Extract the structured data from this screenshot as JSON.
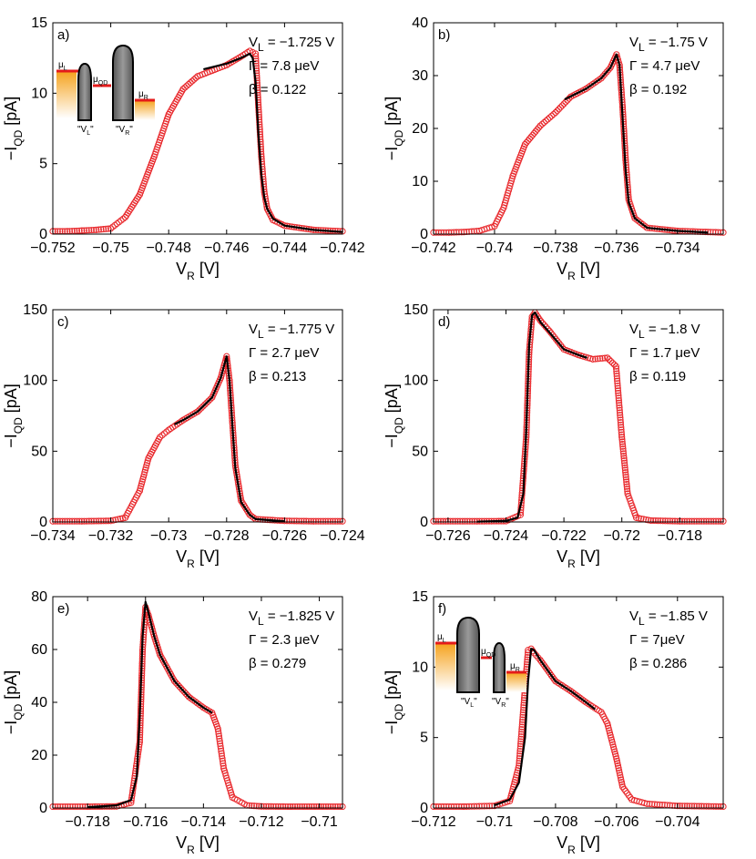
{
  "colors": {
    "data_points": "#e8262a",
    "fit_line": "#000000",
    "axis": "#000000",
    "background": "#ffffff"
  },
  "chart_data": [
    {
      "panel": "a)",
      "type": "scatter",
      "xlabel": "V",
      "xlabel_sub": "R",
      "xlabel_unit": "[V]",
      "ylabel": "−I",
      "ylabel_sub": "QD",
      "ylabel_unit": "[pA]",
      "xlim": [
        -0.752,
        -0.742
      ],
      "ylim": [
        0,
        15
      ],
      "xticks": [
        -0.752,
        -0.75,
        -0.748,
        -0.746,
        -0.744,
        -0.742
      ],
      "xtick_labels": [
        "−0.752",
        "−0.75",
        "−0.748",
        "−0.746",
        "−0.744",
        "−0.742"
      ],
      "yticks": [
        0,
        5,
        10,
        15
      ],
      "ytick_labels": [
        "0",
        "5",
        "10",
        "15"
      ],
      "annotation": [
        "V",
        "L",
        " = −1.725 V",
        "Γ = 7.8 μeV",
        "β = 0.122"
      ],
      "series": [
        {
          "name": "data",
          "mode": "markers",
          "x": [
            -0.752,
            -0.7515,
            -0.751,
            -0.7505,
            -0.75,
            -0.7495,
            -0.749,
            -0.7485,
            -0.748,
            -0.7475,
            -0.747,
            -0.7465,
            -0.746,
            -0.7455,
            -0.7452,
            -0.745,
            -0.7449,
            -0.7448,
            -0.7447,
            -0.7446,
            -0.7444,
            -0.744,
            -0.743,
            -0.742
          ],
          "y": [
            0.2,
            0.2,
            0.25,
            0.3,
            0.4,
            1.2,
            2.8,
            5.5,
            8.5,
            10.3,
            11.2,
            11.6,
            12.0,
            12.6,
            13.0,
            12.8,
            9.0,
            5.5,
            3.0,
            1.8,
            1.0,
            0.6,
            0.3,
            0.2
          ]
        },
        {
          "name": "fit",
          "mode": "line",
          "x": [
            -0.7468,
            -0.746,
            -0.7455,
            -0.7452,
            -0.7451,
            -0.745,
            -0.7449,
            -0.7448,
            -0.7447,
            -0.7446,
            -0.7444,
            -0.744,
            -0.743,
            -0.742
          ],
          "y": [
            11.7,
            12.1,
            12.5,
            12.8,
            12.5,
            10.8,
            7.0,
            4.2,
            2.6,
            1.8,
            1.1,
            0.6,
            0.3,
            0.15
          ]
        }
      ]
    },
    {
      "panel": "b)",
      "type": "scatter",
      "xlabel": "V",
      "xlabel_sub": "R",
      "xlabel_unit": "[V]",
      "ylabel": "−I",
      "ylabel_sub": "QD",
      "ylabel_unit": "[pA]",
      "xlim": [
        -0.742,
        -0.7325
      ],
      "ylim": [
        0,
        40
      ],
      "xticks": [
        -0.742,
        -0.74,
        -0.738,
        -0.736,
        -0.734
      ],
      "xtick_labels": [
        "−0.742",
        "−0.74",
        "−0.738",
        "−0.736",
        "−0.734"
      ],
      "yticks": [
        0,
        10,
        20,
        30,
        40
      ],
      "ytick_labels": [
        "0",
        "10",
        "20",
        "30",
        "40"
      ],
      "annotation": [
        "V",
        "L",
        " = −1.75 V",
        "Γ = 4.7 μeV",
        "β = 0.192"
      ],
      "series": [
        {
          "name": "data",
          "mode": "markers",
          "x": [
            -0.742,
            -0.7415,
            -0.741,
            -0.7405,
            -0.74,
            -0.7397,
            -0.7394,
            -0.739,
            -0.7385,
            -0.738,
            -0.7375,
            -0.737,
            -0.7365,
            -0.7362,
            -0.736,
            -0.7359,
            -0.7358,
            -0.7357,
            -0.7356,
            -0.7354,
            -0.735,
            -0.734,
            -0.733,
            -0.7325
          ],
          "y": [
            0.3,
            0.3,
            0.4,
            0.6,
            1.5,
            5.0,
            11.0,
            17.0,
            20.5,
            23.0,
            26.0,
            27.5,
            29.5,
            31.5,
            34.0,
            32.0,
            24.0,
            14.0,
            6.5,
            3.0,
            1.2,
            0.6,
            0.4,
            0.3
          ]
        },
        {
          "name": "fit",
          "mode": "line",
          "x": [
            -0.7377,
            -0.737,
            -0.7365,
            -0.7362,
            -0.736,
            -0.7359,
            -0.7358,
            -0.7357,
            -0.7356,
            -0.7354,
            -0.735,
            -0.734,
            -0.733
          ],
          "y": [
            25.5,
            27.5,
            29.5,
            31.5,
            34.0,
            32.0,
            22.0,
            12.0,
            6.0,
            3.0,
            1.2,
            0.6,
            0.3
          ]
        }
      ]
    },
    {
      "panel": "c)",
      "type": "scatter",
      "xlabel": "V",
      "xlabel_sub": "R",
      "xlabel_unit": "[V]",
      "ylabel": "−I",
      "ylabel_sub": "QD",
      "ylabel_unit": "[pA]",
      "xlim": [
        -0.734,
        -0.724
      ],
      "ylim": [
        0,
        150
      ],
      "xticks": [
        -0.734,
        -0.732,
        -0.73,
        -0.728,
        -0.726,
        -0.724
      ],
      "xtick_labels": [
        "−0.734",
        "−0.732",
        "−0.73",
        "−0.728",
        "−0.726",
        "−0.724"
      ],
      "yticks": [
        0,
        50,
        100,
        150
      ],
      "ytick_labels": [
        "0",
        "50",
        "100",
        "150"
      ],
      "annotation": [
        "V",
        "L",
        " = −1.775 V",
        "Γ = 2.7 μeV",
        "β = 0.213"
      ],
      "series": [
        {
          "name": "data",
          "mode": "markers",
          "x": [
            -0.734,
            -0.733,
            -0.732,
            -0.7315,
            -0.731,
            -0.7307,
            -0.7303,
            -0.73,
            -0.7295,
            -0.729,
            -0.7285,
            -0.7282,
            -0.728,
            -0.7279,
            -0.7278,
            -0.7277,
            -0.7275,
            -0.7272,
            -0.727,
            -0.726,
            -0.725,
            -0.724
          ],
          "y": [
            0.5,
            0.5,
            0.8,
            3.0,
            22.0,
            45.0,
            60.0,
            65.0,
            72.0,
            78.0,
            88.0,
            102.0,
            117.0,
            100.0,
            70.0,
            40.0,
            15.0,
            5.0,
            2.0,
            0.8,
            0.5,
            0.5
          ]
        },
        {
          "name": "fit",
          "mode": "line",
          "x": [
            -0.7298,
            -0.7295,
            -0.729,
            -0.7285,
            -0.7282,
            -0.728,
            -0.7279,
            -0.7278,
            -0.7277,
            -0.7275,
            -0.7272,
            -0.727,
            -0.726
          ],
          "y": [
            69.0,
            72.0,
            78.0,
            88.0,
            102.0,
            117.0,
            100.0,
            68.0,
            38.0,
            14.0,
            5.0,
            2.0,
            0.5
          ]
        }
      ]
    },
    {
      "panel": "d)",
      "type": "scatter",
      "xlabel": "V",
      "xlabel_sub": "R",
      "xlabel_unit": "[V]",
      "ylabel": "−I",
      "ylabel_sub": "QD",
      "ylabel_unit": "[pA]",
      "xlim": [
        -0.7265,
        -0.7165
      ],
      "ylim": [
        0,
        150
      ],
      "xticks": [
        -0.726,
        -0.724,
        -0.722,
        -0.72,
        -0.718
      ],
      "xtick_labels": [
        "−0.726",
        "−0.724",
        "−0.722",
        "−0.72",
        "−0.718"
      ],
      "yticks": [
        0,
        50,
        100,
        150
      ],
      "ytick_labels": [
        "0",
        "50",
        "100",
        "150"
      ],
      "annotation": [
        "V",
        "L",
        " = −1.8 V",
        "Γ = 1.7 μeV",
        "β = 0.119"
      ],
      "series": [
        {
          "name": "data",
          "mode": "markers",
          "x": [
            -0.7265,
            -0.725,
            -0.724,
            -0.7235,
            -0.7233,
            -0.7232,
            -0.7231,
            -0.723,
            -0.7228,
            -0.7225,
            -0.722,
            -0.7215,
            -0.721,
            -0.7205,
            -0.7202,
            -0.72,
            -0.7198,
            -0.7195,
            -0.719,
            -0.718,
            -0.7165
          ],
          "y": [
            0.5,
            0.5,
            0.6,
            5.0,
            60.0,
            120.0,
            145.0,
            148.0,
            142.0,
            135.0,
            122.0,
            118.0,
            115.0,
            116.0,
            110.0,
            60.0,
            20.0,
            3.0,
            1.0,
            0.5,
            0.5
          ]
        },
        {
          "name": "fit",
          "mode": "line",
          "x": [
            -0.725,
            -0.724,
            -0.7236,
            -0.7234,
            -0.7233,
            -0.7232,
            -0.7231,
            -0.723,
            -0.7228,
            -0.7225,
            -0.722,
            -0.7215,
            -0.7212
          ],
          "y": [
            0.2,
            0.8,
            3.0,
            20.0,
            65.0,
            125.0,
            146.0,
            148.0,
            141.0,
            134.0,
            122.0,
            118.0,
            116.0
          ]
        }
      ]
    },
    {
      "panel": "e)",
      "type": "scatter",
      "xlabel": "V",
      "xlabel_sub": "R",
      "xlabel_unit": "[V]",
      "ylabel": "−I",
      "ylabel_sub": "QD",
      "ylabel_unit": "[pA]",
      "xlim": [
        -0.7192,
        -0.7092
      ],
      "ylim": [
        0,
        80
      ],
      "xticks": [
        -0.718,
        -0.716,
        -0.714,
        -0.712,
        -0.71
      ],
      "xtick_labels": [
        "−0.718",
        "−0.716",
        "−0.714",
        "−0.712",
        "−0.71"
      ],
      "yticks": [
        0,
        20,
        40,
        60,
        80
      ],
      "ytick_labels": [
        "0",
        "20",
        "40",
        "60",
        "80"
      ],
      "annotation": [
        "V",
        "L",
        " = −1.825 V",
        "Γ = 2.3 μeV",
        "β = 0.279"
      ],
      "series": [
        {
          "name": "data",
          "mode": "markers",
          "x": [
            -0.7192,
            -0.718,
            -0.717,
            -0.7165,
            -0.7162,
            -0.7161,
            -0.716,
            -0.7159,
            -0.7157,
            -0.7155,
            -0.715,
            -0.7145,
            -0.714,
            -0.7137,
            -0.7135,
            -0.7133,
            -0.713,
            -0.7125,
            -0.712,
            -0.711,
            -0.7092
          ],
          "y": [
            0.5,
            0.5,
            0.6,
            2.0,
            25.0,
            60.0,
            76.0,
            73.0,
            65.0,
            58.0,
            48.0,
            42.0,
            38.0,
            36.0,
            30.0,
            15.0,
            4.0,
            1.0,
            0.6,
            0.5,
            0.5
          ]
        },
        {
          "name": "fit",
          "mode": "line",
          "x": [
            -0.718,
            -0.717,
            -0.7165,
            -0.7163,
            -0.7162,
            -0.7161,
            -0.716,
            -0.7159,
            -0.7157,
            -0.7155,
            -0.715,
            -0.7145,
            -0.714,
            -0.7137
          ],
          "y": [
            0.3,
            1.0,
            3.0,
            12.0,
            35.0,
            65.0,
            78.0,
            74.0,
            65.0,
            58.0,
            48.0,
            42.0,
            38.0,
            36.0
          ]
        }
      ]
    },
    {
      "panel": "f)",
      "type": "scatter",
      "xlabel": "V",
      "xlabel_sub": "R",
      "xlabel_unit": "[V]",
      "ylabel": "−I",
      "ylabel_sub": "QD",
      "ylabel_unit": "[pA]",
      "xlim": [
        -0.712,
        -0.7025
      ],
      "ylim": [
        0,
        15
      ],
      "xticks": [
        -0.712,
        -0.71,
        -0.708,
        -0.706,
        -0.704
      ],
      "xtick_labels": [
        "−0.712",
        "−0.71",
        "−0.708",
        "−0.706",
        "−0.704"
      ],
      "yticks": [
        0,
        5,
        10,
        15
      ],
      "ytick_labels": [
        "0",
        "5",
        "10",
        "15"
      ],
      "annotation": [
        "V",
        "L",
        " = −1.85 V",
        "Γ = 7μeV",
        "β = 0.286"
      ],
      "series": [
        {
          "name": "data",
          "mode": "markers",
          "x": [
            -0.712,
            -0.711,
            -0.71,
            -0.7095,
            -0.7092,
            -0.709,
            -0.7089,
            -0.7088,
            -0.7087,
            -0.7085,
            -0.708,
            -0.7075,
            -0.707,
            -0.7065,
            -0.7063,
            -0.706,
            -0.7058,
            -0.7055,
            -0.705,
            -0.704,
            -0.7025
          ],
          "y": [
            0.1,
            0.1,
            0.15,
            0.5,
            3.0,
            8.5,
            11.2,
            11.3,
            11.0,
            10.5,
            9.0,
            8.3,
            7.5,
            6.8,
            6.0,
            3.5,
            1.5,
            0.6,
            0.3,
            0.15,
            0.1
          ]
        },
        {
          "name": "fit",
          "mode": "line",
          "x": [
            -0.71,
            -0.7095,
            -0.7092,
            -0.709,
            -0.7089,
            -0.7088,
            -0.7087,
            -0.7085,
            -0.708,
            -0.7075,
            -0.707,
            -0.7067
          ],
          "y": [
            0.2,
            0.6,
            1.8,
            5.0,
            9.0,
            11.3,
            11.2,
            10.5,
            9.0,
            8.3,
            7.5,
            7.0
          ]
        }
      ]
    }
  ],
  "insets": [
    {
      "panel": "a)",
      "labels": {
        "mu_l": "μ",
        "mu_l_sub": "L",
        "mu_qd": "μ",
        "mu_qd_sub": "QD",
        "mu_r": "μ",
        "mu_r_sub": "R",
        "gate_l": "\"V",
        "gate_l_sub": "L",
        "gate_l_end": "\"",
        "gate_r": "\"V",
        "gate_r_sub": "R",
        "gate_r_end": "\""
      }
    },
    {
      "panel": "f)",
      "labels": {
        "mu_l": "μ",
        "mu_l_sub": "L",
        "mu_qd": "μ",
        "mu_qd_sub": "QD",
        "mu_r": "μ",
        "mu_r_sub": "R",
        "gate_l": "\"V",
        "gate_l_sub": "L",
        "gate_l_end": "\"",
        "gate_r": "\"V",
        "gate_r_sub": "R",
        "gate_r_end": "\""
      }
    }
  ]
}
